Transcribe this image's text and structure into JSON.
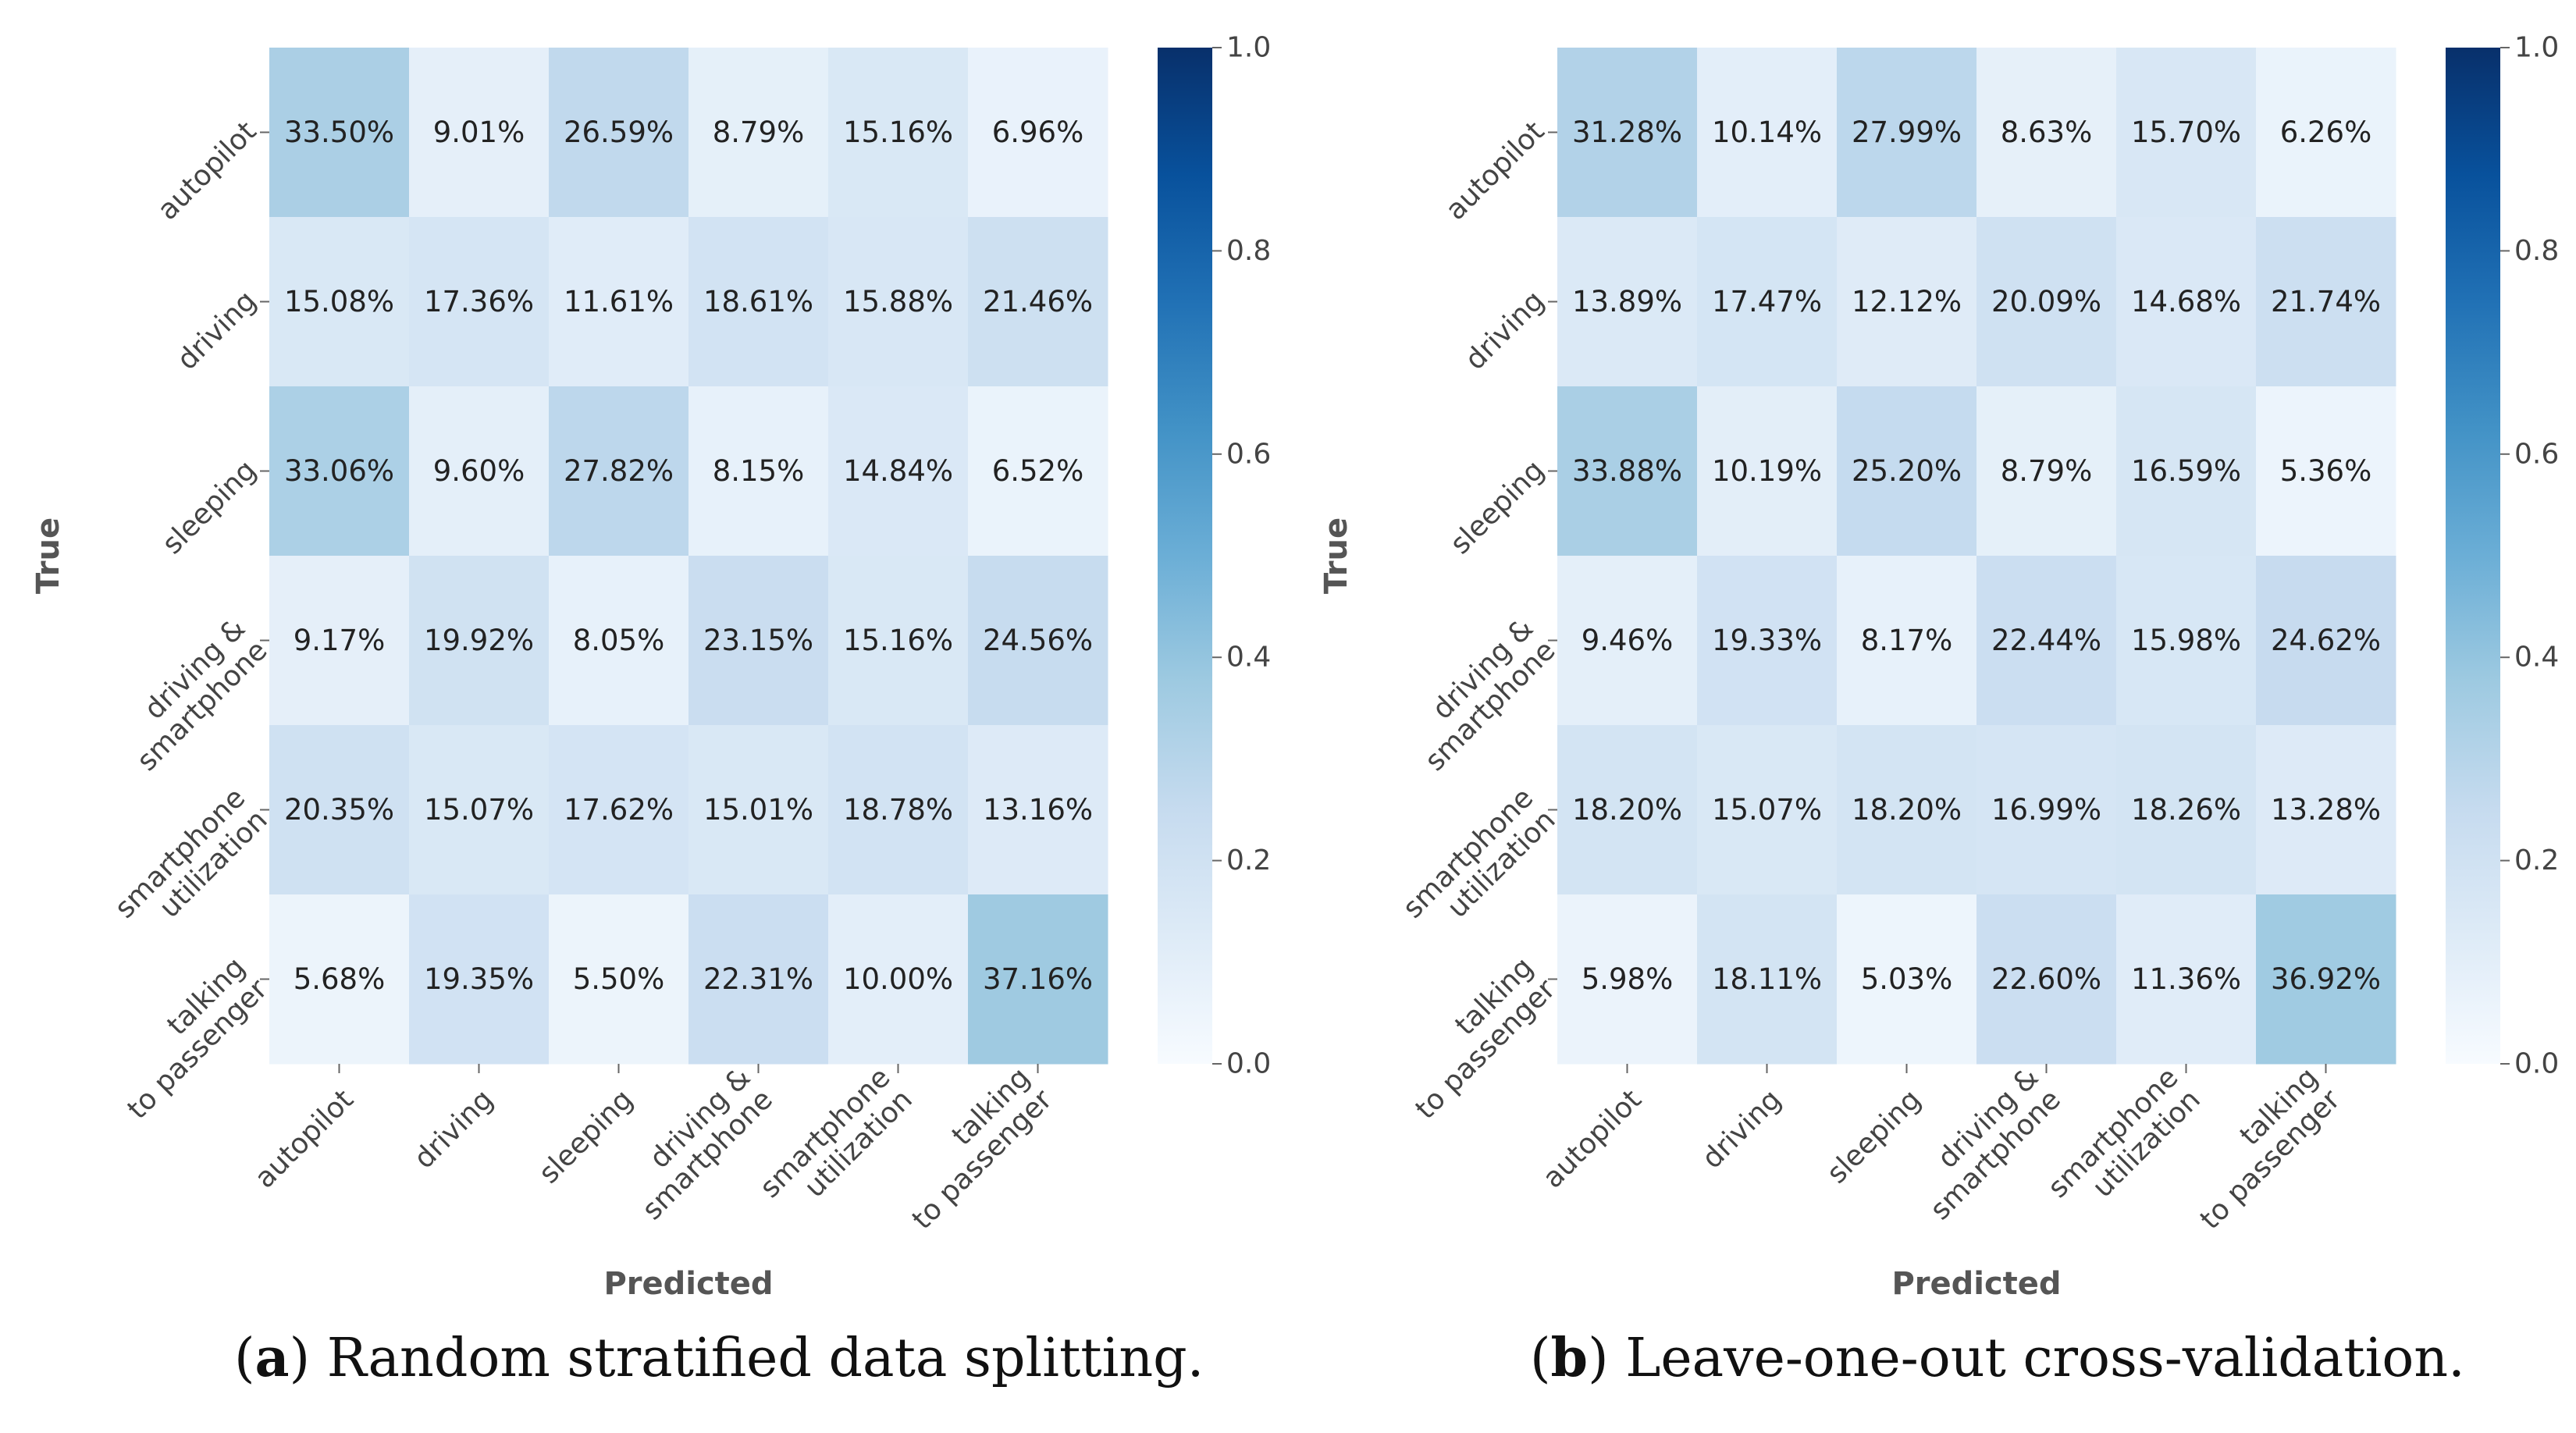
{
  "chart_data": [
    {
      "type": "heatmap",
      "panel_letter": "a",
      "caption": "Random stratified data splitting.",
      "xlabel": "Predicted",
      "ylabel": "True",
      "categories": [
        "autopilot",
        "driving",
        "sleeping",
        "driving & smartphone",
        "smartphone utilization",
        "talking to passenger"
      ],
      "tick_lines": [
        [
          "autopilot"
        ],
        [
          "driving"
        ],
        [
          "sleeping"
        ],
        [
          "driving &",
          "smartphone"
        ],
        [
          "smartphone",
          "utilization"
        ],
        [
          "talking",
          "to passenger"
        ]
      ],
      "values": [
        [
          0.335,
          0.0901,
          0.2659,
          0.0879,
          0.1516,
          0.0696
        ],
        [
          0.1508,
          0.1736,
          0.1161,
          0.1861,
          0.1588,
          0.2146
        ],
        [
          0.3306,
          0.096,
          0.2782,
          0.0815,
          0.1484,
          0.0652
        ],
        [
          0.0917,
          0.1992,
          0.0805,
          0.2315,
          0.1516,
          0.2456
        ],
        [
          0.2035,
          0.1507,
          0.1762,
          0.1501,
          0.1878,
          0.1316
        ],
        [
          0.0568,
          0.1935,
          0.055,
          0.2231,
          0.1,
          0.3716
        ]
      ],
      "labels": [
        [
          "33.50%",
          "9.01%",
          "26.59%",
          "8.79%",
          "15.16%",
          "6.96%"
        ],
        [
          "15.08%",
          "17.36%",
          "11.61%",
          "18.61%",
          "15.88%",
          "21.46%"
        ],
        [
          "33.06%",
          "9.60%",
          "27.82%",
          "8.15%",
          "14.84%",
          "6.52%"
        ],
        [
          "9.17%",
          "19.92%",
          "8.05%",
          "23.15%",
          "15.16%",
          "24.56%"
        ],
        [
          "20.35%",
          "15.07%",
          "17.62%",
          "15.01%",
          "18.78%",
          "13.16%"
        ],
        [
          "5.68%",
          "19.35%",
          "5.50%",
          "22.31%",
          "10.00%",
          "37.16%"
        ]
      ],
      "colorbar": {
        "range": [
          0.0,
          1.0
        ],
        "ticks": [
          "0.0",
          "0.2",
          "0.4",
          "0.6",
          "0.8",
          "1.0"
        ]
      }
    },
    {
      "type": "heatmap",
      "panel_letter": "b",
      "caption": "Leave-one-out cross-validation.",
      "xlabel": "Predicted",
      "ylabel": "True",
      "categories": [
        "autopilot",
        "driving",
        "sleeping",
        "driving & smartphone",
        "smartphone utilization",
        "talking to passenger"
      ],
      "tick_lines": [
        [
          "autopilot"
        ],
        [
          "driving"
        ],
        [
          "sleeping"
        ],
        [
          "driving &",
          "smartphone"
        ],
        [
          "smartphone",
          "utilization"
        ],
        [
          "talking",
          "to passenger"
        ]
      ],
      "values": [
        [
          0.3128,
          0.1014,
          0.2799,
          0.0863,
          0.157,
          0.0626
        ],
        [
          0.1389,
          0.1747,
          0.1212,
          0.2009,
          0.1468,
          0.2174
        ],
        [
          0.3388,
          0.1019,
          0.252,
          0.0879,
          0.1659,
          0.0536
        ],
        [
          0.0946,
          0.1933,
          0.0817,
          0.2244,
          0.1598,
          0.2462
        ],
        [
          0.182,
          0.1507,
          0.182,
          0.1699,
          0.1826,
          0.1328
        ],
        [
          0.0598,
          0.1811,
          0.0503,
          0.226,
          0.1136,
          0.3692
        ]
      ],
      "labels": [
        [
          "31.28%",
          "10.14%",
          "27.99%",
          "8.63%",
          "15.70%",
          "6.26%"
        ],
        [
          "13.89%",
          "17.47%",
          "12.12%",
          "20.09%",
          "14.68%",
          "21.74%"
        ],
        [
          "33.88%",
          "10.19%",
          "25.20%",
          "8.79%",
          "16.59%",
          "5.36%"
        ],
        [
          "9.46%",
          "19.33%",
          "8.17%",
          "22.44%",
          "15.98%",
          "24.62%"
        ],
        [
          "18.20%",
          "15.07%",
          "18.20%",
          "16.99%",
          "18.26%",
          "13.28%"
        ],
        [
          "5.98%",
          "18.11%",
          "5.03%",
          "22.60%",
          "11.36%",
          "36.92%"
        ]
      ],
      "colorbar": {
        "range": [
          0.0,
          1.0
        ],
        "ticks": [
          "0.0",
          "0.2",
          "0.4",
          "0.6",
          "0.8",
          "1.0"
        ]
      }
    }
  ]
}
